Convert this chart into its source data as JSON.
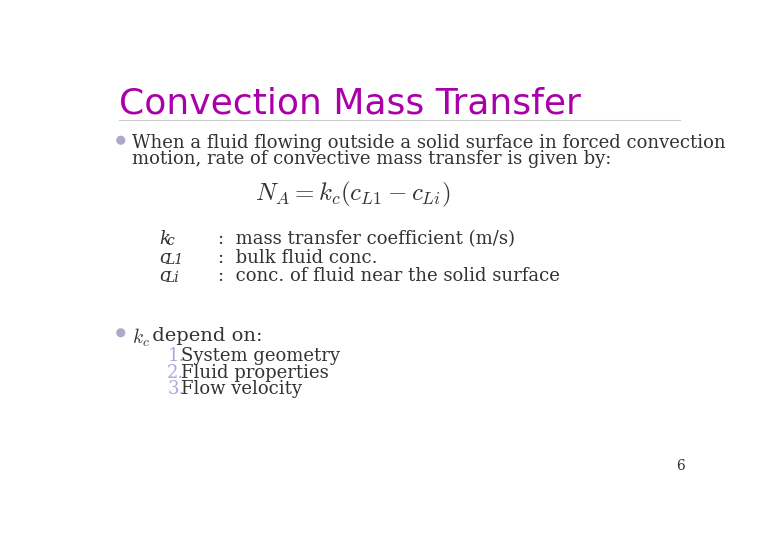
{
  "title": "Convection Mass Transfer",
  "title_color": "#AA00AA",
  "title_fontsize": 26,
  "bg_color": "#FFFFFF",
  "bullet_color": "#AAAACC",
  "bullet1_text1": "When a fluid flowing outside a solid surface in forced convection",
  "bullet1_text2": "motion, rate of convective mass transfer is given by:",
  "equation": "$N_A = k_c (c_{L1} - c_{Li})$",
  "var_kc_label": "k",
  "var_kc_sub": "c",
  "var_cL1_label": "c",
  "var_cL1_sub": "L1",
  "var_cLi_label": "c",
  "var_cLi_sub": "Li",
  "desc_kc": ":  mass transfer coefficient (m/s)",
  "desc_cL1": ":  bulk fluid conc.",
  "desc_cLi": ":  conc. of fluid near the solid surface",
  "bullet2_kc": "$k_c$",
  "bullet2_text": " depend on:",
  "list_numbers": [
    "1.",
    "2.",
    "3."
  ],
  "list_items": [
    "System geometry",
    "Fluid properties",
    "Flow velocity"
  ],
  "list_num_color": "#AAAADD",
  "list_text_color": "#333333",
  "page_number": "6",
  "text_color": "#333333",
  "body_fontsize": 13,
  "eq_fontsize": 18,
  "var_fontsize": 13
}
